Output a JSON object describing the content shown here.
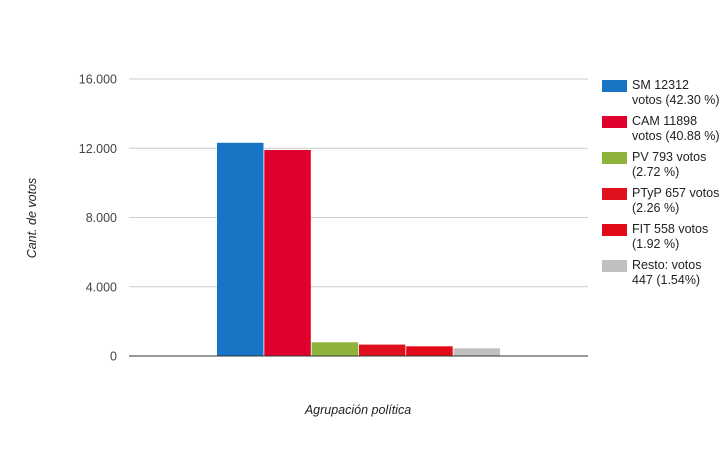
{
  "chart_data": {
    "type": "bar",
    "xlabel": "Agrupación política",
    "ylabel": "Cant. de votos",
    "ylim": [
      0,
      16000
    ],
    "yticks": [
      {
        "value": 0,
        "label": "0"
      },
      {
        "value": 4000,
        "label": "4.000"
      },
      {
        "value": 8000,
        "label": "8.000"
      },
      {
        "value": 12000,
        "label": "12.000"
      },
      {
        "value": 16000,
        "label": "16.000"
      }
    ],
    "grid": true,
    "legend_position": "right",
    "series": [
      {
        "name": "SM 12312 votos (42.30 %)",
        "value": 12312,
        "color": "#1874c4"
      },
      {
        "name": "CAM 11898 votos (40.88 %)",
        "value": 11898,
        "color": "#e0002d"
      },
      {
        "name": "PV 793 votos (2.72 %)",
        "value": 793,
        "color": "#8db33a"
      },
      {
        "name": "PTyP 657 votos (2.26 %)",
        "value": 657,
        "color": "#e0101e"
      },
      {
        "name": "FIT 558 votos (1.92 %)",
        "value": 558,
        "color": "#e20a18"
      },
      {
        "name": "Resto: votos 447 (1.54%)",
        "value": 447,
        "color": "#c0c0c0"
      }
    ]
  }
}
